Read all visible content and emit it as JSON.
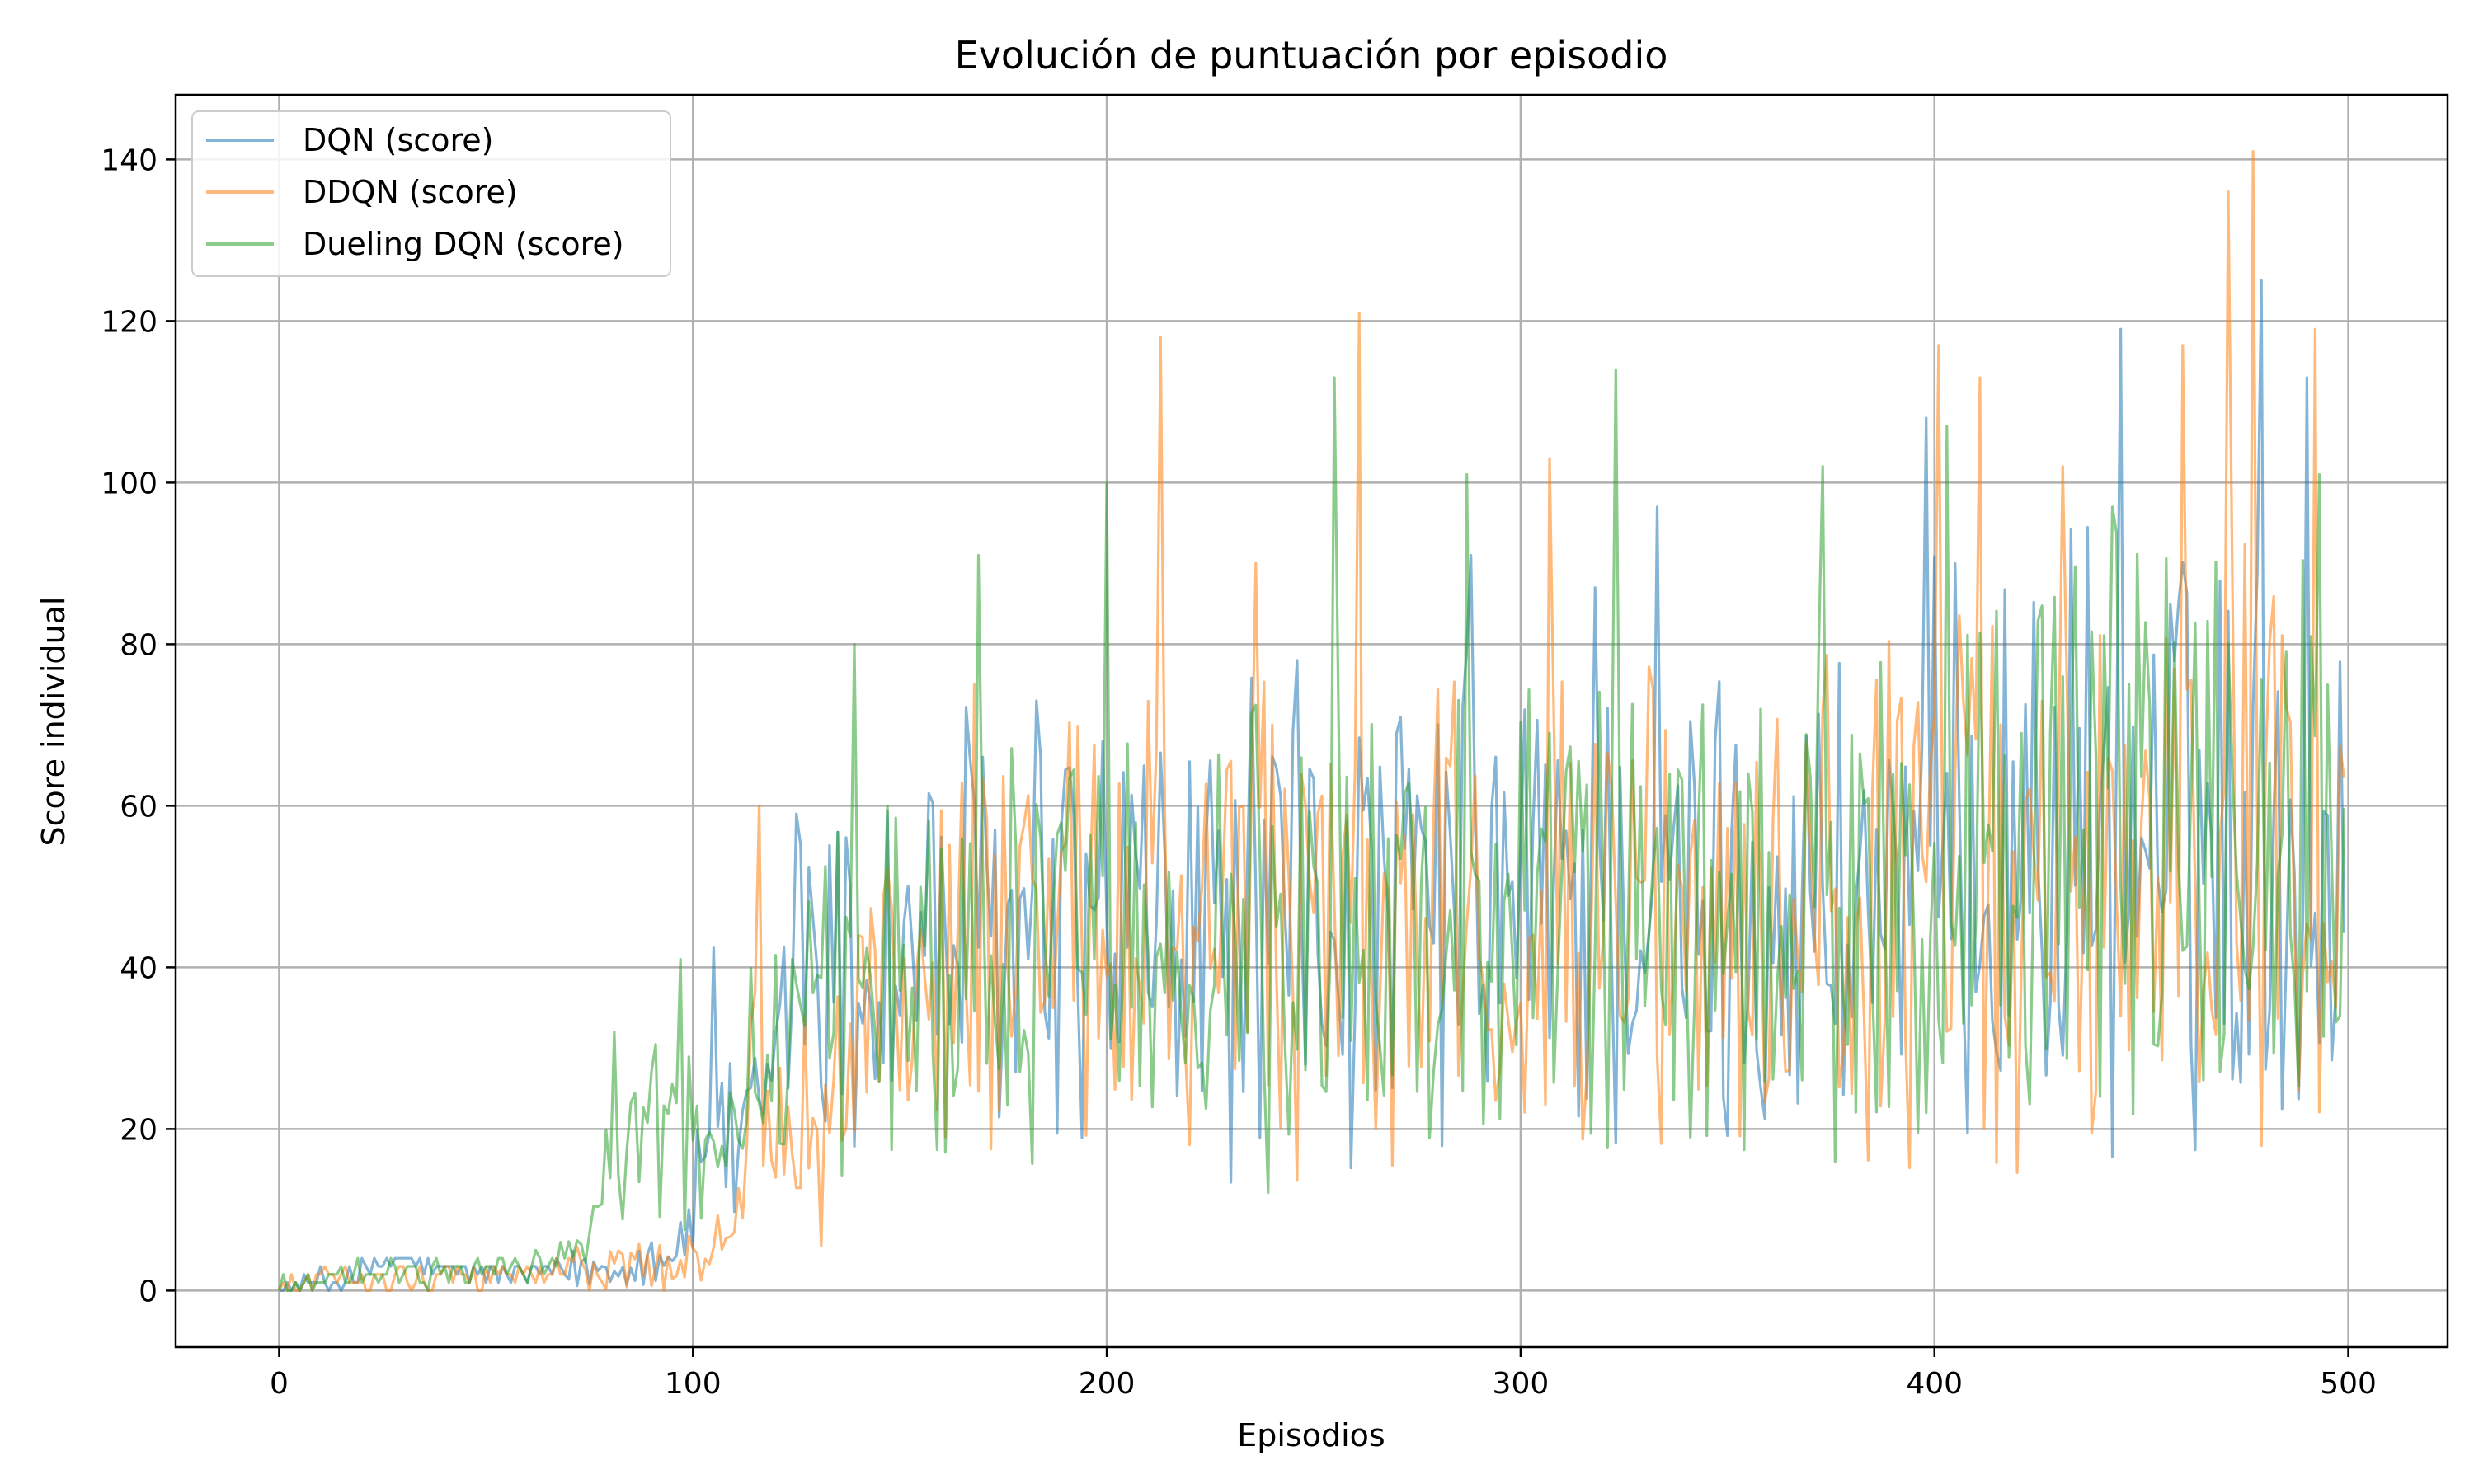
{
  "chart_data": {
    "type": "line",
    "title": "Evolución de puntuación por episodio",
    "xlabel": "Episodios",
    "ylabel": "Score individual",
    "xlim": [
      -25,
      524
    ],
    "ylim": [
      -7,
      148
    ],
    "xticks": [
      0,
      100,
      200,
      300,
      400,
      500
    ],
    "yticks": [
      0,
      20,
      40,
      60,
      80,
      100,
      120,
      140
    ],
    "grid": true,
    "legend_position": "top-left",
    "colors": {
      "DQN (score)": "#1f77b4",
      "DDQN (score)": "#ff7f0e",
      "Dueling DQN (score)": "#2ca02c"
    },
    "episodes": 500,
    "series": [
      {
        "name": "DQN (score)",
        "color": "#1f77b4",
        "keypoints": [
          [
            0,
            0
          ],
          [
            20,
            2
          ],
          [
            30,
            4
          ],
          [
            40,
            2
          ],
          [
            60,
            2
          ],
          [
            80,
            3
          ],
          [
            95,
            5
          ],
          [
            100,
            8
          ],
          [
            105,
            30
          ],
          [
            110,
            14
          ],
          [
            120,
            25
          ],
          [
            125,
            45
          ],
          [
            135,
            38
          ],
          [
            145,
            40
          ],
          [
            160,
            45
          ],
          [
            180,
            42
          ],
          [
            200,
            45
          ],
          [
            220,
            43
          ],
          [
            240,
            46
          ],
          [
            260,
            44
          ],
          [
            280,
            47
          ],
          [
            300,
            48
          ],
          [
            320,
            47
          ],
          [
            340,
            46
          ],
          [
            360,
            47
          ],
          [
            380,
            48
          ],
          [
            400,
            52
          ],
          [
            420,
            55
          ],
          [
            440,
            56
          ],
          [
            460,
            58
          ],
          [
            480,
            54
          ],
          [
            499,
            52
          ]
        ],
        "peaks": [
          [
            125,
            59
          ],
          [
            183,
            73
          ],
          [
            246,
            78
          ],
          [
            288,
            91
          ],
          [
            318,
            87
          ],
          [
            333,
            97
          ],
          [
            398,
            108
          ],
          [
            445,
            119
          ],
          [
            479,
            125
          ],
          [
            490,
            113
          ]
        ]
      },
      {
        "name": "DDQN (score)",
        "color": "#ff7f0e",
        "keypoints": [
          [
            0,
            0
          ],
          [
            20,
            2
          ],
          [
            40,
            2
          ],
          [
            60,
            2
          ],
          [
            80,
            3
          ],
          [
            100,
            3
          ],
          [
            110,
            8
          ],
          [
            115,
            30
          ],
          [
            120,
            25
          ],
          [
            130,
            20
          ],
          [
            140,
            30
          ],
          [
            150,
            38
          ],
          [
            165,
            40
          ],
          [
            180,
            38
          ],
          [
            200,
            45
          ],
          [
            220,
            43
          ],
          [
            240,
            44
          ],
          [
            260,
            42
          ],
          [
            280,
            45
          ],
          [
            300,
            46
          ],
          [
            320,
            44
          ],
          [
            340,
            45
          ],
          [
            360,
            46
          ],
          [
            380,
            47
          ],
          [
            400,
            50
          ],
          [
            420,
            52
          ],
          [
            440,
            53
          ],
          [
            460,
            55
          ],
          [
            480,
            54
          ],
          [
            499,
            52
          ]
        ],
        "peaks": [
          [
            116,
            60
          ],
          [
            168,
            75
          ],
          [
            213,
            118
          ],
          [
            236,
            90
          ],
          [
            261,
            121
          ],
          [
            307,
            103
          ],
          [
            401,
            117
          ],
          [
            411,
            113
          ],
          [
            431,
            102
          ],
          [
            460,
            117
          ],
          [
            471,
            136
          ],
          [
            477,
            141
          ],
          [
            492,
            119
          ]
        ]
      },
      {
        "name": "Dueling DQN (score)",
        "color": "#2ca02c",
        "keypoints": [
          [
            0,
            0
          ],
          [
            20,
            2
          ],
          [
            40,
            2
          ],
          [
            60,
            3
          ],
          [
            75,
            5
          ],
          [
            80,
            15
          ],
          [
            90,
            20
          ],
          [
            100,
            18
          ],
          [
            110,
            20
          ],
          [
            120,
            30
          ],
          [
            130,
            38
          ],
          [
            140,
            42
          ],
          [
            150,
            40
          ],
          [
            170,
            42
          ],
          [
            200,
            45
          ],
          [
            220,
            44
          ],
          [
            240,
            44
          ],
          [
            260,
            43
          ],
          [
            280,
            46
          ],
          [
            300,
            47
          ],
          [
            320,
            46
          ],
          [
            340,
            45
          ],
          [
            360,
            46
          ],
          [
            380,
            48
          ],
          [
            400,
            50
          ],
          [
            420,
            53
          ],
          [
            440,
            54
          ],
          [
            460,
            55
          ],
          [
            480,
            53
          ],
          [
            499,
            52
          ]
        ],
        "peaks": [
          [
            81,
            32
          ],
          [
            97,
            41
          ],
          [
            139,
            80
          ],
          [
            169,
            91
          ],
          [
            200,
            100
          ],
          [
            255,
            113
          ],
          [
            287,
            101
          ],
          [
            323,
            114
          ],
          [
            373,
            102
          ],
          [
            403,
            107
          ],
          [
            443,
            97
          ],
          [
            493,
            101
          ]
        ]
      }
    ]
  }
}
